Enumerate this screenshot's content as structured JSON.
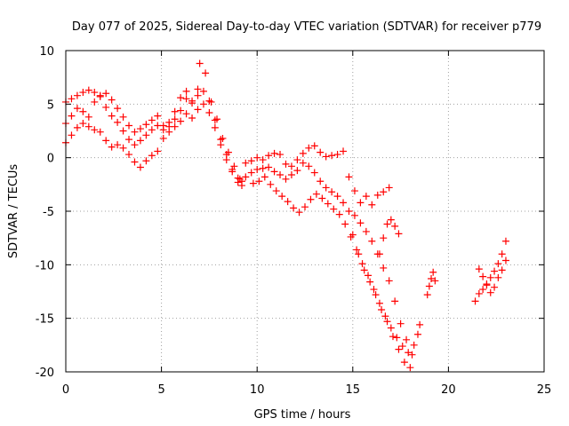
{
  "chart_data": {
    "type": "scatter",
    "title": "Day 077 of 2025, Sidereal Day-to-day VTEC variation (SDTVAR) for receiver p779",
    "xlabel": "GPS time / hours",
    "ylabel": "SDTVAR / TECUs",
    "xlim": [
      0,
      25
    ],
    "ylim": [
      -20,
      10
    ],
    "xticks": [
      0,
      5,
      10,
      15,
      20,
      25
    ],
    "yticks": [
      -20,
      -15,
      -10,
      -5,
      0,
      5,
      10
    ],
    "xtick_labels": [
      "0",
      "5",
      "10",
      "15",
      "20",
      "25"
    ],
    "ytick_labels": [
      "-20",
      "-15",
      "-10",
      "-5",
      "0",
      "5",
      "10"
    ],
    "grid": true,
    "marker": "+",
    "color": "#ff0000",
    "series": [
      {
        "x": [
          0.0,
          0.3,
          0.6,
          0.9,
          1.2,
          1.5,
          1.8,
          2.1,
          2.4,
          2.7,
          3.0,
          3.3,
          3.6,
          3.9,
          4.2,
          4.5,
          4.8,
          5.1,
          5.4,
          5.7,
          6.0,
          6.3,
          6.6,
          6.9,
          7.0,
          7.3,
          7.6,
          7.9,
          8.2,
          8.5,
          8.8,
          9.1
        ],
        "y": [
          5.2,
          5.5,
          5.8,
          6.1,
          6.3,
          6.1,
          5.8,
          6.0,
          5.4,
          4.6,
          3.8,
          3.0,
          2.4,
          2.7,
          3.1,
          3.5,
          3.9,
          3.0,
          3.3,
          4.3,
          5.6,
          6.2,
          5.3,
          6.4,
          8.8,
          7.9,
          5.2,
          3.6,
          1.8,
          0.5,
          -0.8,
          -2.0
        ]
      },
      {
        "x": [
          0.0,
          0.3,
          0.6,
          0.9,
          1.2,
          1.5,
          1.8,
          2.1,
          2.4,
          2.7,
          3.0,
          3.3,
          3.6,
          3.9,
          4.2,
          4.5,
          4.8,
          5.1,
          5.4,
          5.7,
          6.0,
          6.3,
          6.6,
          6.9,
          7.2,
          7.5,
          7.8,
          8.1,
          8.4,
          8.7,
          9.0,
          9.2
        ],
        "y": [
          3.2,
          3.9,
          4.6,
          4.3,
          3.8,
          5.2,
          5.7,
          4.7,
          3.9,
          3.3,
          2.5,
          1.7,
          1.2,
          1.6,
          2.1,
          2.6,
          3.0,
          2.6,
          2.9,
          3.6,
          4.4,
          5.5,
          5.1,
          5.8,
          6.2,
          5.3,
          3.5,
          1.7,
          0.3,
          -1.1,
          -2.3,
          -2.6
        ]
      },
      {
        "x": [
          0.0,
          0.3,
          0.6,
          0.9,
          1.2,
          1.5,
          1.8,
          2.1,
          2.4,
          2.7,
          3.0,
          3.3,
          3.6,
          3.9,
          4.2,
          4.5,
          4.8,
          5.1,
          5.4,
          5.7,
          6.0,
          6.3,
          6.6,
          6.9,
          7.2,
          7.5,
          7.8,
          8.1,
          8.4,
          8.7,
          9.0,
          9.2
        ],
        "y": [
          1.4,
          2.1,
          2.8,
          3.2,
          2.9,
          2.6,
          2.4,
          1.6,
          1.0,
          1.2,
          0.9,
          0.3,
          -0.4,
          -0.9,
          -0.3,
          0.2,
          0.6,
          1.8,
          2.4,
          2.9,
          3.4,
          4.1,
          3.7,
          4.5,
          5.0,
          4.2,
          2.8,
          1.2,
          -0.2,
          -1.3,
          -1.9,
          -2.2
        ]
      },
      {
        "x": [
          9.4,
          9.7,
          10.0,
          10.3,
          10.6,
          10.9,
          11.2,
          11.5,
          11.8,
          12.1,
          12.4,
          12.7,
          13.0,
          13.3,
          13.6,
          13.9,
          14.2,
          14.5,
          14.8,
          15.1,
          15.4,
          15.7,
          16.0,
          16.3,
          16.6,
          16.9
        ],
        "y": [
          -0.5,
          -0.3,
          0.0,
          -0.2,
          0.2,
          0.4,
          0.3,
          -0.6,
          -0.8,
          -0.2,
          0.4,
          0.9,
          1.1,
          0.5,
          0.1,
          0.2,
          0.3,
          0.6,
          -1.8,
          -3.1,
          -4.2,
          -3.6,
          -4.4,
          -3.5,
          -3.2,
          -2.8
        ]
      },
      {
        "x": [
          9.4,
          9.7,
          10.0,
          10.3,
          10.6,
          10.9,
          11.2,
          11.5,
          11.8,
          12.1,
          12.4,
          12.7,
          13.0,
          13.3,
          13.6,
          13.9,
          14.2,
          14.5,
          14.8,
          15.1,
          15.4,
          15.7,
          16.0,
          16.3,
          16.6,
          16.9,
          17.2,
          17.5,
          17.8,
          18.1,
          18.4
        ],
        "y": [
          -1.8,
          -1.4,
          -1.1,
          -1.0,
          -0.9,
          -1.3,
          -1.6,
          -2.0,
          -1.6,
          -1.2,
          -0.5,
          -0.8,
          -1.4,
          -2.2,
          -2.8,
          -3.2,
          -3.6,
          -4.2,
          -5.0,
          -5.4,
          -6.1,
          -6.9,
          -7.8,
          -9.0,
          -10.3,
          -11.5,
          -13.4,
          -15.5,
          -17.0,
          -18.4,
          -16.5
        ]
      },
      {
        "x": [
          9.8,
          10.1,
          10.4,
          10.7,
          11.0,
          11.3,
          11.6,
          11.9,
          12.2,
          12.5,
          12.8,
          13.1,
          13.4,
          13.7,
          14.0,
          14.3,
          14.6,
          14.9,
          15.2,
          15.5,
          15.8,
          16.1,
          16.4,
          16.7,
          17.0,
          17.3,
          17.6,
          17.9,
          18.2,
          18.5
        ],
        "y": [
          -2.4,
          -2.2,
          -1.8,
          -2.5,
          -3.1,
          -3.6,
          -4.1,
          -4.7,
          -5.1,
          -4.6,
          -3.9,
          -3.4,
          -3.8,
          -4.3,
          -4.8,
          -5.3,
          -6.2,
          -7.4,
          -8.6,
          -9.9,
          -11.0,
          -12.3,
          -13.6,
          -14.8,
          -15.9,
          -16.8,
          -17.6,
          -18.2,
          -17.5,
          -15.6
        ]
      },
      {
        "x": [
          15.0,
          15.3,
          15.6,
          15.9,
          16.2,
          16.5,
          16.8,
          17.1,
          17.4,
          17.7,
          18.0
        ],
        "y": [
          -7.2,
          -9.0,
          -10.5,
          -11.6,
          -12.8,
          -14.2,
          -15.3,
          -16.7,
          -17.9,
          -19.1,
          -19.6
        ]
      },
      {
        "x": [
          16.4,
          16.6,
          16.8,
          17.0,
          17.2,
          17.4
        ],
        "y": [
          -9.0,
          -7.5,
          -6.2,
          -5.8,
          -6.4,
          -7.1
        ]
      },
      {
        "x": [
          18.9,
          19.0,
          19.1,
          19.2,
          19.3
        ],
        "y": [
          -12.8,
          -12.0,
          -11.3,
          -10.7,
          -11.5
        ]
      },
      {
        "x": [
          21.4,
          21.6,
          21.8,
          22.0,
          22.2,
          22.4,
          22.6,
          22.8,
          23.0
        ],
        "y": [
          -13.4,
          -12.7,
          -12.3,
          -11.8,
          -11.2,
          -10.6,
          -9.9,
          -9.0,
          -7.8
        ]
      },
      {
        "x": [
          21.6,
          21.8,
          22.0,
          22.2,
          22.4,
          22.6,
          22.8,
          23.0
        ],
        "y": [
          -10.4,
          -11.1,
          -11.9,
          -12.6,
          -12.1,
          -11.2,
          -10.5,
          -9.6
        ]
      }
    ]
  }
}
